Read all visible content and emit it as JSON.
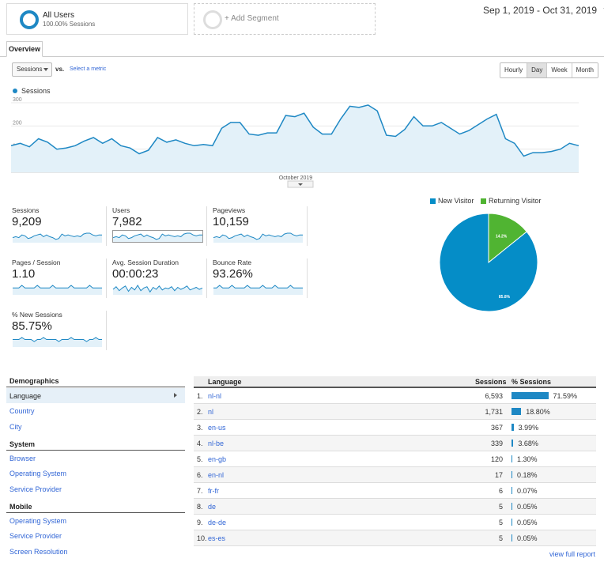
{
  "segments": {
    "active": {
      "title": "All Users",
      "subtitle": "100.00% Sessions"
    },
    "add_label": "+ Add Segment"
  },
  "date_range": "Sep 1, 2019 - Oct 31, 2019",
  "tabs": [
    {
      "label": "Overview",
      "active": true
    }
  ],
  "controls": {
    "metric_select": "Sessions",
    "vs_label": "vs.",
    "select_metric_link": "Select a metric",
    "granularity": [
      {
        "label": "Hourly",
        "active": false
      },
      {
        "label": "Day",
        "active": true
      },
      {
        "label": "Week",
        "active": false
      },
      {
        "label": "Month",
        "active": false
      }
    ]
  },
  "chart_data": [
    {
      "type": "area",
      "title": "",
      "series": [
        {
          "name": "Sessions",
          "color": "#1e88c4",
          "values": [
            115,
            125,
            110,
            145,
            130,
            100,
            105,
            115,
            135,
            150,
            125,
            145,
            115,
            105,
            80,
            95,
            150,
            130,
            140,
            125,
            115,
            120,
            115,
            190,
            215,
            215,
            165,
            160,
            170,
            170,
            245,
            240,
            255,
            195,
            165,
            165,
            230,
            285,
            280,
            290,
            265,
            160,
            155,
            185,
            240,
            200,
            200,
            215,
            190,
            165,
            180,
            205,
            230,
            250,
            145,
            125,
            70,
            85,
            85,
            90,
            100,
            125,
            115
          ]
        }
      ],
      "x_label_mid": "October 2019",
      "yticks": [
        "300",
        "200",
        "100"
      ],
      "ylim": [
        0,
        300
      ],
      "grid": true
    },
    {
      "type": "pie",
      "series": [
        {
          "name": "New Visitor",
          "color": "#058dc7",
          "value": 85.8
        },
        {
          "name": "Returning Visitor",
          "color": "#50b432",
          "value": 14.2
        }
      ],
      "slice_labels": [
        "85.8%",
        "14.2%"
      ],
      "legend": "top"
    }
  ],
  "metrics": [
    {
      "label": "Sessions",
      "value": "9,209",
      "spark": [
        10,
        11,
        10,
        13,
        12,
        9,
        10,
        12,
        13,
        14,
        11,
        13,
        11,
        10,
        8,
        9,
        14,
        12,
        13,
        12,
        11,
        12,
        11,
        14,
        15,
        15,
        13,
        12,
        13,
        13
      ]
    },
    {
      "label": "Users",
      "value": "7,982",
      "spark": [
        9,
        10,
        9,
        12,
        11,
        8,
        9,
        11,
        12,
        13,
        10,
        12,
        10,
        9,
        7,
        8,
        13,
        11,
        12,
        11,
        10,
        11,
        10,
        13,
        14,
        14,
        12,
        11,
        12,
        12
      ]
    },
    {
      "label": "Pageviews",
      "value": "10,159",
      "spark": [
        11,
        12,
        11,
        14,
        13,
        10,
        11,
        13,
        14,
        15,
        12,
        14,
        12,
        11,
        9,
        10,
        15,
        13,
        14,
        13,
        12,
        13,
        12,
        15,
        16,
        16,
        14,
        13,
        14,
        14
      ]
    },
    {
      "label": "Pages / Session",
      "value": "1.10",
      "spark": [
        10,
        10,
        10,
        11,
        10,
        10,
        10,
        10,
        11,
        10,
        10,
        10,
        10,
        11,
        10,
        10,
        10,
        10,
        10,
        11,
        10,
        10,
        10,
        10,
        10,
        11,
        10,
        10,
        10,
        10
      ]
    },
    {
      "label": "Avg. Session Duration",
      "value": "00:00:23",
      "spark": [
        10,
        14,
        8,
        12,
        15,
        7,
        13,
        9,
        16,
        8,
        12,
        14,
        6,
        13,
        10,
        15,
        9,
        12,
        11,
        14,
        8,
        13,
        10,
        12,
        15,
        9,
        11,
        13,
        10,
        12
      ]
    },
    {
      "label": "Bounce Rate",
      "value": "93.26%",
      "spark": [
        12,
        12,
        13,
        12,
        12,
        12,
        13,
        12,
        12,
        12,
        12,
        13,
        12,
        12,
        12,
        12,
        13,
        12,
        12,
        12,
        13,
        12,
        12,
        12,
        12,
        13,
        12,
        12,
        12,
        12
      ]
    },
    {
      "label": "% New Sessions",
      "value": "85.75%",
      "spark": [
        12,
        12,
        12,
        13,
        12,
        12,
        12,
        11,
        12,
        12,
        13,
        12,
        12,
        12,
        12,
        11,
        12,
        12,
        12,
        13,
        12,
        12,
        12,
        12,
        11,
        12,
        12,
        13,
        12,
        12
      ]
    }
  ],
  "demographics": {
    "groups": [
      {
        "title": "Demographics",
        "items": [
          "Language",
          "Country",
          "City"
        ]
      },
      {
        "title": "System",
        "items": [
          "Browser",
          "Operating System",
          "Service Provider"
        ]
      },
      {
        "title": "Mobile",
        "items": [
          "Operating System",
          "Service Provider",
          "Screen Resolution"
        ]
      }
    ],
    "active_item": "Language"
  },
  "table": {
    "headers": {
      "dimension": "Language",
      "sessions": "Sessions",
      "pct": "% Sessions"
    },
    "rows": [
      {
        "n": "1.",
        "lang": "nl-nl",
        "sessions": "6,593",
        "pct": "71.59%",
        "frac": 0.7159
      },
      {
        "n": "2.",
        "lang": "nl",
        "sessions": "1,731",
        "pct": "18.80%",
        "frac": 0.188
      },
      {
        "n": "3.",
        "lang": "en-us",
        "sessions": "367",
        "pct": "3.99%",
        "frac": 0.0399
      },
      {
        "n": "4.",
        "lang": "nl-be",
        "sessions": "339",
        "pct": "3.68%",
        "frac": 0.0368
      },
      {
        "n": "5.",
        "lang": "en-gb",
        "sessions": "120",
        "pct": "1.30%",
        "frac": 0.013
      },
      {
        "n": "6.",
        "lang": "en-nl",
        "sessions": "17",
        "pct": "0.18%",
        "frac": 0.0018
      },
      {
        "n": "7.",
        "lang": "fr-fr",
        "sessions": "6",
        "pct": "0.07%",
        "frac": 0.0007
      },
      {
        "n": "8.",
        "lang": "de",
        "sessions": "5",
        "pct": "0.05%",
        "frac": 0.0005
      },
      {
        "n": "9.",
        "lang": "de-de",
        "sessions": "5",
        "pct": "0.05%",
        "frac": 0.0005
      },
      {
        "n": "10.",
        "lang": "es-es",
        "sessions": "5",
        "pct": "0.05%",
        "frac": 0.0005
      }
    ],
    "footer_link": "view full report"
  },
  "colors": {
    "accent": "#1e88c4",
    "link": "#3367d6",
    "new": "#058dc7",
    "returning": "#50b432"
  }
}
